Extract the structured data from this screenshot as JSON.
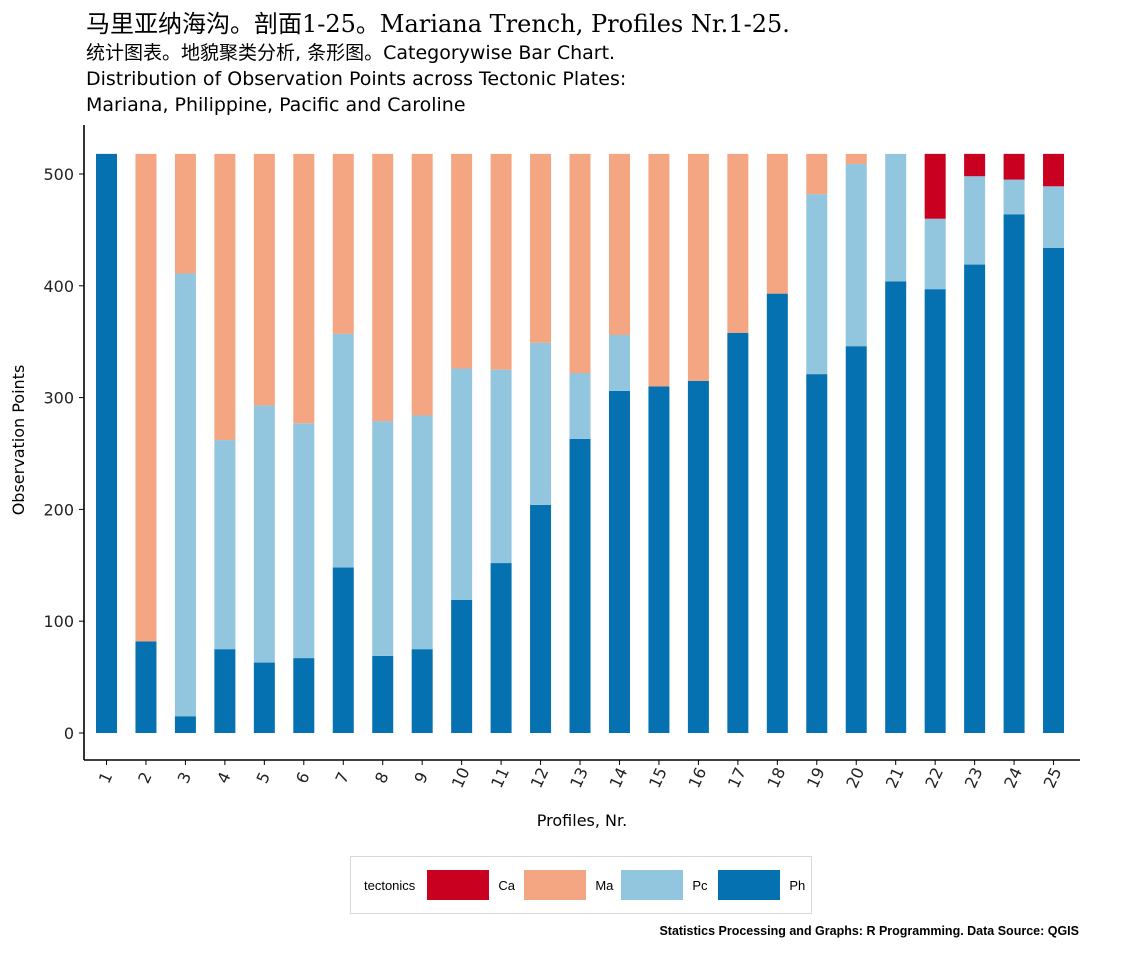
{
  "title": "马里亚纳海沟。剖面1-25。Mariana Trench, Profiles Nr.1-25.",
  "subtitle": "统计图表。地貌聚类分析, 条形图。Categorywise Bar Chart.\nDistribution of Observation Points across Tectonic Plates:\nMariana, Philippine, Pacific and Caroline",
  "caption": "Statistics Processing and Graphs: R Programming. Data Source: QGIS",
  "legend": {
    "title": "tectonics",
    "items": [
      {
        "label": "Ca",
        "color": "#ca0020"
      },
      {
        "label": "Ma",
        "color": "#f4a582"
      },
      {
        "label": "Pc",
        "color": "#92c5de"
      },
      {
        "label": "Ph",
        "color": "#0571b0"
      }
    ]
  },
  "chart_data": {
    "type": "bar",
    "stacked": true,
    "xlabel": "Profiles, Nr.",
    "ylabel": "Observation Points",
    "ylim": [
      0,
      518
    ],
    "yticks": [
      0,
      100,
      200,
      300,
      400,
      500
    ],
    "categories": [
      "1",
      "2",
      "3",
      "4",
      "5",
      "6",
      "7",
      "8",
      "9",
      "10",
      "11",
      "12",
      "13",
      "14",
      "15",
      "16",
      "17",
      "18",
      "19",
      "20",
      "21",
      "22",
      "23",
      "24",
      "25"
    ],
    "series": [
      {
        "name": "Ph",
        "color": "#0571b0",
        "values": [
          518,
          82,
          15,
          75,
          63,
          67,
          148,
          69,
          75,
          119,
          152,
          204,
          263,
          306,
          310,
          315,
          358,
          393,
          321,
          346,
          404,
          397,
          419,
          464,
          434
        ]
      },
      {
        "name": "Pc",
        "color": "#92c5de",
        "values": [
          0,
          0,
          396,
          187,
          230,
          210,
          209,
          210,
          209,
          207,
          173,
          145,
          59,
          50,
          0,
          0,
          0,
          0,
          161,
          163,
          114,
          63,
          79,
          31,
          55
        ]
      },
      {
        "name": "Ma",
        "color": "#f4a582",
        "values": [
          0,
          436,
          107,
          256,
          225,
          241,
          161,
          239,
          234,
          192,
          193,
          169,
          196,
          162,
          208,
          203,
          160,
          125,
          36,
          9,
          0,
          0,
          0,
          0,
          0
        ]
      },
      {
        "name": "Ca",
        "color": "#ca0020",
        "values": [
          0,
          0,
          0,
          0,
          0,
          0,
          0,
          0,
          0,
          0,
          0,
          0,
          0,
          0,
          0,
          0,
          0,
          0,
          0,
          0,
          0,
          58,
          20,
          23,
          29
        ]
      }
    ],
    "grid": false,
    "legend_position": "bottom"
  }
}
